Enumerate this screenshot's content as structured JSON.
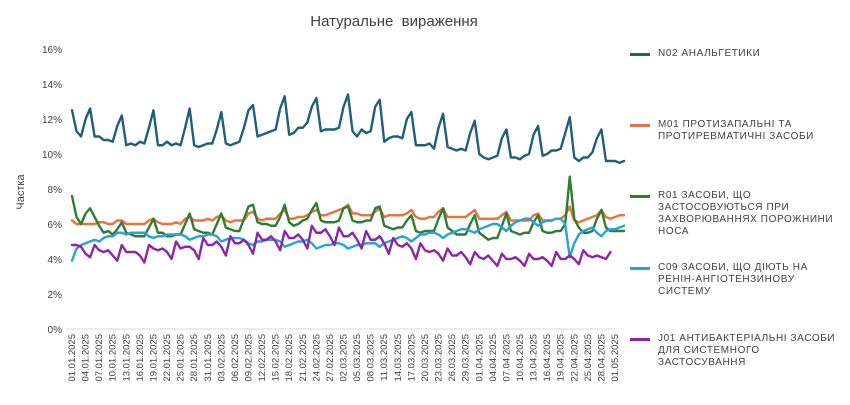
{
  "chart_data": {
    "type": "line",
    "title": "Натуральне  вираження",
    "ylabel": "Частка",
    "xlabel": "",
    "ylim": [
      0,
      16
    ],
    "yticks": [
      "0%",
      "2%",
      "4%",
      "6%",
      "8%",
      "10%",
      "12%",
      "14%",
      "16%"
    ],
    "grid": false,
    "legend_position": "right",
    "x_start": "01.01.2025",
    "x_end": "01.05.2025",
    "x_tick_labels": [
      "01.01.2025",
      "04.01.2025",
      "07.01.2025",
      "10.01.2025",
      "13.01.2025",
      "16.01.2025",
      "19.01.2025",
      "22.01.2025",
      "25.01.2025",
      "28.01.2025",
      "31.01.2025",
      "03.02.2025",
      "06.02.2025",
      "09.02.2025",
      "12.02.2025",
      "15.02.2025",
      "18.02.2025",
      "21.02.2025",
      "24.02.2025",
      "27.02.2025",
      "02.03.2025",
      "05.03.2025",
      "08.03.2025",
      "11.03.2025",
      "14.03.2025",
      "17.03.2025",
      "20.03.2025",
      "23.03.2025",
      "26.03.2025",
      "29.03.2025",
      "01.04.2025",
      "04.04.2025",
      "07.04.2025",
      "10.04.2025",
      "13.04.2025",
      "16.04.2025",
      "19.04.2025",
      "22.04.2025",
      "25.04.2025",
      "28.04.2025",
      "01.05.2025"
    ],
    "series": [
      {
        "name": "N02 АНАЛЬГЕТИКИ",
        "color": "#1f5f7a",
        "values": [
          12.5,
          11.3,
          11.0,
          12.0,
          12.6,
          11.0,
          11.0,
          10.8,
          10.8,
          10.7,
          11.6,
          12.2,
          10.5,
          10.6,
          10.5,
          10.7,
          10.6,
          11.5,
          12.5,
          10.5,
          10.5,
          10.7,
          10.5,
          10.6,
          10.5,
          11.5,
          12.6,
          10.5,
          10.4,
          10.5,
          10.6,
          10.6,
          11.4,
          12.4,
          10.6,
          10.5,
          10.6,
          10.7,
          11.5,
          12.5,
          12.8,
          11.0,
          11.1,
          11.2,
          11.3,
          11.4,
          12.6,
          13.3,
          11.1,
          11.2,
          11.5,
          11.5,
          11.8,
          12.7,
          13.2,
          11.3,
          11.4,
          11.4,
          11.4,
          11.5,
          12.7,
          13.4,
          11.3,
          11.0,
          11.4,
          11.2,
          11.3,
          12.7,
          13.1,
          10.7,
          10.9,
          11.0,
          11.0,
          10.9,
          12.0,
          12.4,
          10.5,
          10.5,
          10.5,
          10.6,
          10.3,
          11.5,
          12.3,
          10.4,
          10.3,
          10.2,
          10.3,
          10.2,
          11.2,
          11.9,
          10.0,
          9.8,
          9.7,
          9.8,
          9.9,
          10.9,
          11.4,
          9.8,
          9.8,
          9.7,
          9.9,
          10.0,
          11.1,
          11.6,
          9.9,
          10.0,
          10.2,
          10.2,
          10.3,
          11.2,
          12.1,
          9.8,
          9.6,
          9.8,
          9.8,
          10.1,
          10.9,
          11.4,
          9.6,
          9.6,
          9.6,
          9.5,
          9.6
        ]
      },
      {
        "name": "M01 ПРОТИЗАПАЛЬНІ ТА ПРОТИРЕВМАТИЧНІ ЗАСОБИ",
        "color": "#e8743b",
        "values": [
          6.2,
          6.0,
          6.0,
          6.0,
          6.0,
          6.0,
          6.1,
          6.1,
          6.0,
          6.0,
          6.2,
          6.2,
          6.0,
          6.0,
          6.0,
          6.0,
          6.0,
          6.2,
          6.3,
          6.1,
          6.0,
          6.0,
          6.0,
          6.1,
          6.0,
          6.3,
          6.4,
          6.2,
          6.2,
          6.2,
          6.3,
          6.2,
          6.4,
          6.5,
          6.2,
          6.1,
          6.2,
          6.2,
          6.2,
          6.6,
          6.7,
          6.3,
          6.2,
          6.3,
          6.3,
          6.3,
          6.6,
          6.8,
          6.3,
          6.3,
          6.4,
          6.4,
          6.5,
          6.7,
          6.8,
          6.5,
          6.5,
          6.6,
          6.7,
          6.8,
          6.9,
          7.1,
          6.6,
          6.6,
          6.5,
          6.5,
          6.5,
          6.7,
          6.9,
          6.4,
          6.5,
          6.5,
          6.5,
          6.5,
          6.6,
          6.8,
          6.4,
          6.3,
          6.3,
          6.4,
          6.4,
          6.7,
          6.9,
          6.4,
          6.4,
          6.4,
          6.4,
          6.4,
          6.6,
          6.8,
          6.3,
          6.3,
          6.3,
          6.3,
          6.3,
          6.5,
          6.7,
          6.2,
          6.2,
          6.2,
          6.2,
          6.2,
          6.5,
          6.6,
          6.2,
          6.2,
          6.2,
          6.3,
          6.3,
          6.5,
          7.0,
          6.2,
          6.1,
          6.2,
          6.3,
          6.4,
          6.5,
          6.8,
          6.4,
          6.3,
          6.4,
          6.5,
          6.5
        ]
      },
      {
        "name": "R01 ЗАСОБИ, ЩО ЗАСТОСОВУЮТЬСЯ ПРИ ЗАХВОРЮВАННЯХ ПОРОЖНИНИ НОСА",
        "color": "#2e7d32",
        "values": [
          7.6,
          6.4,
          6.0,
          6.6,
          6.9,
          6.4,
          5.9,
          5.5,
          5.6,
          5.4,
          5.7,
          6.1,
          5.5,
          5.4,
          5.3,
          5.3,
          5.3,
          5.8,
          6.3,
          5.5,
          5.5,
          5.3,
          5.3,
          5.4,
          5.4,
          6.0,
          6.6,
          5.7,
          5.6,
          5.5,
          5.5,
          5.4,
          6.0,
          6.6,
          5.8,
          5.7,
          5.6,
          5.6,
          6.3,
          7.0,
          7.1,
          6.1,
          6.0,
          6.0,
          5.9,
          5.9,
          6.4,
          7.1,
          6.1,
          5.9,
          6.0,
          6.2,
          6.3,
          6.8,
          7.2,
          6.2,
          6.1,
          6.1,
          6.1,
          6.2,
          6.9,
          7.0,
          6.2,
          6.1,
          6.1,
          6.2,
          6.2,
          6.9,
          7.0,
          5.9,
          5.8,
          5.7,
          5.8,
          5.8,
          6.2,
          6.5,
          5.6,
          5.5,
          5.6,
          5.6,
          5.6,
          6.3,
          6.9,
          5.8,
          5.6,
          5.4,
          5.4,
          5.4,
          6.0,
          6.5,
          5.5,
          5.3,
          5.1,
          5.2,
          5.2,
          5.9,
          6.6,
          5.6,
          5.5,
          5.4,
          5.5,
          5.5,
          6.1,
          6.5,
          5.6,
          5.5,
          5.5,
          5.6,
          5.6,
          6.0,
          8.7,
          6.3,
          5.8,
          5.5,
          5.5,
          5.6,
          6.3,
          6.8,
          5.8,
          5.6,
          5.6,
          5.6,
          5.6
        ]
      },
      {
        "name": "C09 ЗАСОБИ, ЩО ДІЮТЬ НА РЕНІН-АНГІОТЕНЗИНОВУ СИСТЕМУ",
        "color": "#29a3d6",
        "values": [
          3.9,
          4.6,
          4.8,
          4.9,
          5.0,
          5.1,
          5.0,
          5.2,
          5.3,
          5.3,
          5.5,
          5.5,
          5.4,
          5.5,
          5.5,
          5.5,
          5.5,
          5.3,
          5.2,
          5.3,
          5.3,
          5.4,
          5.4,
          5.4,
          5.4,
          5.3,
          5.1,
          5.2,
          5.3,
          5.3,
          5.4,
          5.4,
          5.3,
          5.0,
          5.1,
          5.2,
          5.2,
          5.2,
          5.1,
          4.9,
          4.8,
          5.0,
          5.0,
          5.1,
          5.1,
          5.1,
          5.0,
          4.7,
          4.8,
          4.9,
          5.0,
          5.0,
          5.1,
          4.9,
          4.6,
          4.7,
          4.8,
          4.8,
          4.9,
          4.9,
          4.8,
          4.6,
          4.7,
          4.8,
          4.8,
          4.9,
          4.9,
          4.9,
          4.7,
          4.9,
          5.0,
          5.1,
          5.2,
          5.3,
          5.2,
          5.0,
          5.2,
          5.4,
          5.4,
          5.5,
          5.5,
          5.4,
          5.2,
          5.4,
          5.5,
          5.6,
          5.7,
          5.7,
          5.6,
          5.5,
          5.7,
          5.8,
          5.9,
          6.0,
          6.0,
          5.8,
          5.6,
          5.9,
          6.1,
          6.2,
          6.3,
          6.3,
          6.1,
          5.9,
          6.1,
          6.2,
          6.2,
          6.3,
          6.3,
          6.0,
          4.1,
          4.9,
          5.4,
          5.6,
          5.7,
          5.8,
          5.5,
          5.3,
          5.6,
          5.7,
          5.7,
          5.8,
          5.9
        ]
      },
      {
        "name": "J01 АНТИБАКТЕРІАЛЬНІ ЗАСОБИ ДЛЯ СИСТЕМНОГО ЗАСТОСУВАННЯ",
        "color": "#8e24aa",
        "values": [
          4.8,
          4.8,
          4.7,
          4.3,
          4.1,
          4.8,
          4.5,
          4.4,
          4.5,
          4.2,
          3.9,
          4.8,
          4.4,
          4.4,
          4.4,
          4.2,
          3.8,
          4.8,
          4.6,
          4.5,
          4.6,
          4.4,
          4.0,
          5.0,
          4.6,
          4.7,
          4.7,
          4.5,
          4.0,
          5.2,
          4.8,
          4.8,
          5.0,
          4.7,
          4.2,
          5.3,
          4.9,
          4.9,
          5.1,
          4.8,
          4.3,
          5.5,
          5.1,
          5.1,
          5.3,
          5.0,
          4.5,
          5.6,
          5.2,
          5.2,
          5.4,
          5.1,
          4.6,
          5.9,
          5.5,
          5.5,
          5.7,
          5.3,
          4.8,
          5.8,
          5.3,
          5.3,
          5.5,
          5.1,
          4.6,
          5.6,
          5.1,
          5.1,
          5.3,
          4.9,
          4.3,
          5.2,
          4.8,
          4.7,
          4.9,
          4.6,
          4.0,
          4.9,
          4.5,
          4.4,
          4.5,
          4.3,
          3.9,
          4.6,
          4.2,
          4.2,
          4.4,
          4.1,
          3.7,
          4.4,
          4.1,
          4.0,
          4.2,
          3.9,
          3.6,
          4.3,
          4.0,
          4.0,
          4.1,
          3.9,
          3.6,
          4.3,
          4.0,
          4.0,
          4.1,
          3.9,
          3.6,
          4.4,
          4.0,
          4.0,
          4.2,
          4.0,
          3.7,
          4.5,
          4.2,
          4.1,
          4.2,
          4.1,
          4.0,
          4.4
        ]
      }
    ]
  }
}
